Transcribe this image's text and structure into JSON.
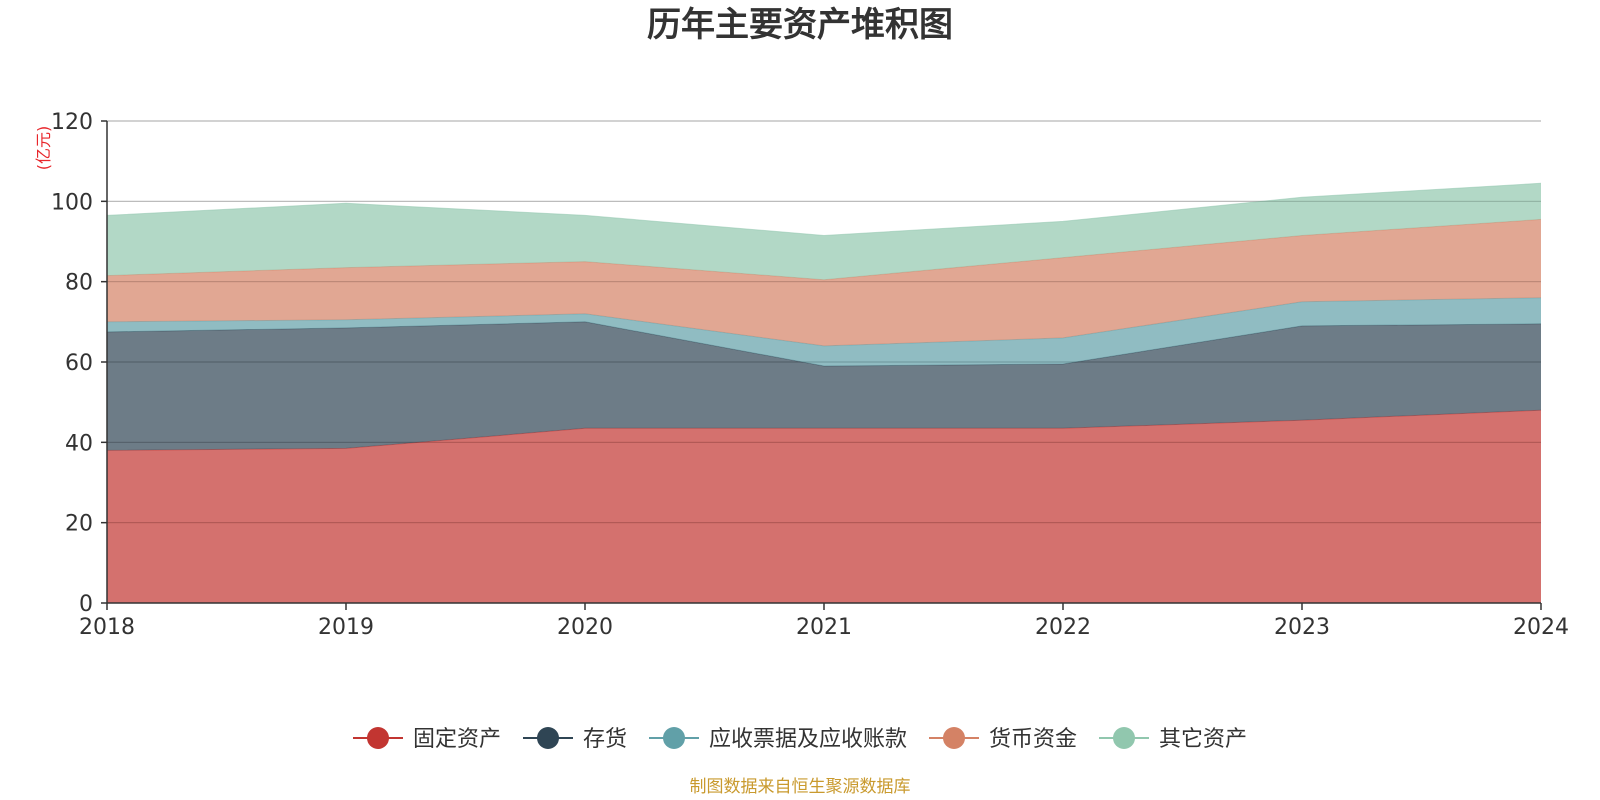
{
  "chart_data": {
    "type": "area",
    "stacked": true,
    "title": "历年主要资产堆积图",
    "ylabel": "(亿元)",
    "xlabel": "",
    "categories": [
      "2018",
      "2019",
      "2020",
      "2021",
      "2022",
      "2023",
      "2024"
    ],
    "ylim": [
      0,
      120
    ],
    "yticks": [
      0,
      20,
      40,
      60,
      80,
      100,
      120
    ],
    "grid": true,
    "legend_position": "bottom-center",
    "series": [
      {
        "name": "固定资产",
        "color": "#c23531",
        "values": [
          38.0,
          38.5,
          43.5,
          43.5,
          43.5,
          45.5,
          48.0
        ]
      },
      {
        "name": "存货",
        "color": "#2f4554",
        "values": [
          29.5,
          30.0,
          26.5,
          15.5,
          16.0,
          23.5,
          21.5
        ]
      },
      {
        "name": "应收票据及应收账款",
        "color": "#61a0a8",
        "values": [
          2.5,
          2.0,
          2.0,
          5.0,
          6.5,
          6.0,
          6.5
        ]
      },
      {
        "name": "货币资金",
        "color": "#d48265",
        "values": [
          11.5,
          13.0,
          13.0,
          16.5,
          20.0,
          16.5,
          19.5
        ]
      },
      {
        "name": "其它资产",
        "color": "#91c7ae",
        "values": [
          15.0,
          16.0,
          11.5,
          11.0,
          9.0,
          9.5,
          9.0
        ]
      }
    ]
  },
  "footer": {
    "source": "制图数据来自恒生聚源数据库"
  }
}
